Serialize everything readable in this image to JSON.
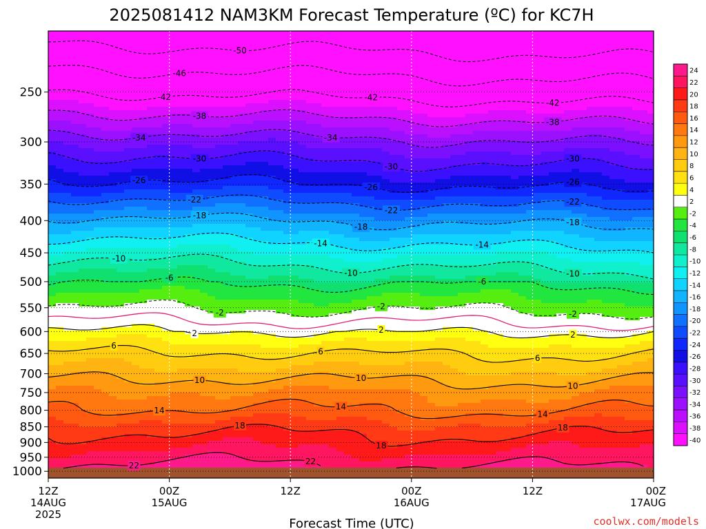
{
  "chart_data": {
    "type": "heatmap",
    "title": "2025081412 NAM3KM Forecast Temperature (ºC) for KC7H",
    "xlabel": "Forecast Time (UTC)",
    "ylabel": "",
    "credit": "coolwx.com/models",
    "x_range_hours": [
      0,
      60
    ],
    "x_ticks": [
      {
        "hour": 0,
        "label1": "12Z",
        "label2": "14AUG",
        "label3": "2025"
      },
      {
        "hour": 12,
        "label1": "00Z",
        "label2": "15AUG",
        "label3": ""
      },
      {
        "hour": 24,
        "label1": "12Z",
        "label2": "",
        "label3": ""
      },
      {
        "hour": 36,
        "label1": "00Z",
        "label2": "16AUG",
        "label3": ""
      },
      {
        "hour": 48,
        "label1": "12Z",
        "label2": "",
        "label3": ""
      },
      {
        "hour": 60,
        "label1": "00Z",
        "label2": "17AUG",
        "label3": ""
      }
    ],
    "y_axis": "pressure (hPa), log scale, inverted",
    "y_range_hpa": [
      1025,
      200
    ],
    "y_ticks": [
      250,
      300,
      350,
      400,
      450,
      500,
      550,
      600,
      650,
      700,
      750,
      800,
      850,
      900,
      950,
      1000
    ],
    "colorbar_ticks": [
      24,
      22,
      20,
      18,
      16,
      14,
      12,
      10,
      8,
      6,
      4,
      2,
      -2,
      -4,
      -6,
      -8,
      -10,
      -12,
      -14,
      -16,
      -18,
      -20,
      -22,
      -24,
      -26,
      -28,
      -30,
      -32,
      -34,
      -36,
      -38,
      -40
    ],
    "color_bands": [
      {
        "lo": 22,
        "hi": 26,
        "color": "#ff1a8c"
      },
      {
        "lo": 20,
        "hi": 22,
        "color": "#ff1560"
      },
      {
        "lo": 18,
        "hi": 20,
        "color": "#ff1a1a"
      },
      {
        "lo": 16,
        "hi": 18,
        "color": "#ff3a14"
      },
      {
        "lo": 14,
        "hi": 16,
        "color": "#ff5a10"
      },
      {
        "lo": 12,
        "hi": 14,
        "color": "#ff7810"
      },
      {
        "lo": 10,
        "hi": 12,
        "color": "#ff9a10"
      },
      {
        "lo": 8,
        "hi": 10,
        "color": "#ffb412"
      },
      {
        "lo": 6,
        "hi": 8,
        "color": "#ffcc10"
      },
      {
        "lo": 4,
        "hi": 6,
        "color": "#ffe010"
      },
      {
        "lo": 2,
        "hi": 4,
        "color": "#ffff10"
      },
      {
        "lo": -2,
        "hi": 2,
        "color": "#ffffff"
      },
      {
        "lo": -4,
        "hi": -2,
        "color": "#55ee10"
      },
      {
        "lo": -6,
        "hi": -4,
        "color": "#22e640"
      },
      {
        "lo": -8,
        "hi": -6,
        "color": "#10e070"
      },
      {
        "lo": -10,
        "hi": -8,
        "color": "#10e8a0"
      },
      {
        "lo": -12,
        "hi": -10,
        "color": "#10f0cc"
      },
      {
        "lo": -14,
        "hi": -12,
        "color": "#10f0f0"
      },
      {
        "lo": -16,
        "hi": -14,
        "color": "#10d4ff"
      },
      {
        "lo": -18,
        "hi": -16,
        "color": "#10b4ff"
      },
      {
        "lo": -20,
        "hi": -18,
        "color": "#1094ff"
      },
      {
        "lo": -22,
        "hi": -20,
        "color": "#1070ff"
      },
      {
        "lo": -24,
        "hi": -22,
        "color": "#104cff"
      },
      {
        "lo": -26,
        "hi": -24,
        "color": "#1028ff"
      },
      {
        "lo": -28,
        "hi": -26,
        "color": "#1010e6"
      },
      {
        "lo": -30,
        "hi": -28,
        "color": "#3a10ff"
      },
      {
        "lo": -32,
        "hi": -30,
        "color": "#5a10ff"
      },
      {
        "lo": -34,
        "hi": -32,
        "color": "#7a10ff"
      },
      {
        "lo": -36,
        "hi": -34,
        "color": "#9a10ff"
      },
      {
        "lo": -38,
        "hi": -36,
        "color": "#ba10ff"
      },
      {
        "lo": -40,
        "hi": -38,
        "color": "#da10ff"
      },
      {
        "lo": -60,
        "hi": -40,
        "color": "#ff10ff"
      }
    ],
    "ground_color": "#a0522d",
    "temperature_profile": [
      {
        "p": 1025,
        "t": 24
      },
      {
        "p": 1000,
        "t": 23
      },
      {
        "p": 950,
        "t": 21
      },
      {
        "p": 900,
        "t": 19
      },
      {
        "p": 850,
        "t": 17
      },
      {
        "p": 800,
        "t": 14
      },
      {
        "p": 750,
        "t": 12
      },
      {
        "p": 700,
        "t": 9
      },
      {
        "p": 650,
        "t": 6
      },
      {
        "p": 600,
        "t": 2
      },
      {
        "p": 550,
        "t": -2
      },
      {
        "p": 500,
        "t": -6
      },
      {
        "p": 450,
        "t": -11
      },
      {
        "p": 400,
        "t": -17
      },
      {
        "p": 350,
        "t": -25
      },
      {
        "p": 300,
        "t": -32
      },
      {
        "p": 250,
        "t": -42
      },
      {
        "p": 200,
        "t": -52
      }
    ],
    "contours": [
      {
        "value": 22,
        "label": "22",
        "style": "solid",
        "label_hours": [
          8.5,
          26
        ]
      },
      {
        "value": 18,
        "label": "18",
        "style": "solid",
        "label_hours": [
          19,
          33,
          51
        ]
      },
      {
        "value": 14,
        "label": "14",
        "style": "solid",
        "label_hours": [
          11,
          29,
          49
        ]
      },
      {
        "value": 10,
        "label": "10",
        "style": "solid",
        "label_hours": [
          15,
          31,
          52
        ]
      },
      {
        "value": 6,
        "label": "6",
        "style": "solid",
        "label_hours": [
          6.5,
          27,
          48.5
        ]
      },
      {
        "value": 2,
        "label": "2",
        "style": "solid",
        "label_hours": [
          14.5,
          33,
          52
        ]
      },
      {
        "value": 0,
        "label": "",
        "style": "magenta",
        "label_hours": []
      },
      {
        "value": -2,
        "label": "-2",
        "style": "dashed",
        "label_hours": [
          17,
          33,
          52
        ]
      },
      {
        "value": -6,
        "label": "-6",
        "style": "dashed",
        "label_hours": [
          12,
          43
        ]
      },
      {
        "value": -10,
        "label": "-10",
        "style": "dashed",
        "label_hours": [
          7,
          30,
          52
        ]
      },
      {
        "value": -14,
        "label": "-14",
        "style": "dashed",
        "label_hours": [
          27,
          43
        ]
      },
      {
        "value": -18,
        "label": "-18",
        "style": "dashed",
        "label_hours": [
          15,
          31,
          52
        ]
      },
      {
        "value": -22,
        "label": "-22",
        "style": "dashed",
        "label_hours": [
          14.5,
          34,
          52
        ]
      },
      {
        "value": -26,
        "label": "-26",
        "style": "dashed",
        "label_hours": [
          9,
          32,
          52
        ]
      },
      {
        "value": -30,
        "label": "-30",
        "style": "dashed",
        "label_hours": [
          15,
          34,
          52
        ]
      },
      {
        "value": -34,
        "label": "-34",
        "style": "dashed",
        "label_hours": [
          9,
          28
        ]
      },
      {
        "value": -38,
        "label": "-38",
        "style": "dashed",
        "label_hours": [
          15,
          50
        ]
      },
      {
        "value": -42,
        "label": "-42",
        "style": "dashed",
        "label_hours": [
          11.5,
          32,
          50
        ]
      },
      {
        "value": -46,
        "label": "-46",
        "style": "dashed",
        "label_hours": [
          13
        ]
      },
      {
        "value": -50,
        "label": "-50",
        "style": "dashed",
        "label_hours": [
          19
        ]
      }
    ]
  }
}
